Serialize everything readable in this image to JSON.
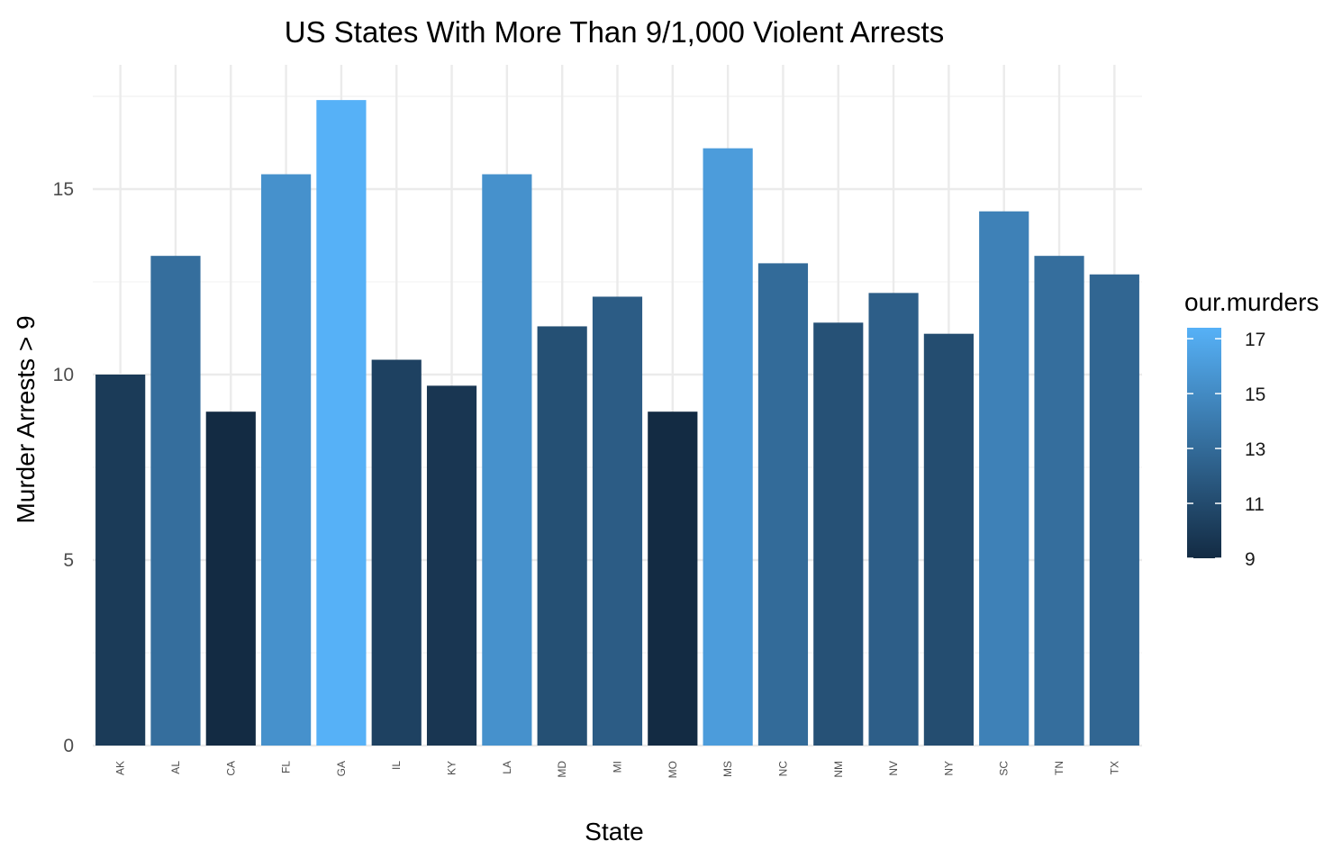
{
  "chart_data": {
    "type": "bar",
    "title": "US States With More Than 9/1,000 Violent Arrests",
    "xlabel": "State",
    "ylabel": "Murder Arrests > 9",
    "categories": [
      "AK",
      "AL",
      "CA",
      "FL",
      "GA",
      "IL",
      "KY",
      "LA",
      "MD",
      "MI",
      "MO",
      "MS",
      "NC",
      "NM",
      "NV",
      "NY",
      "SC",
      "TN",
      "TX"
    ],
    "values": [
      10.0,
      13.2,
      9.0,
      15.4,
      17.4,
      10.4,
      9.7,
      15.4,
      11.3,
      12.1,
      9.0,
      16.1,
      13.0,
      11.4,
      12.2,
      11.1,
      14.4,
      13.2,
      12.7
    ],
    "ylim": [
      0,
      17.4
    ],
    "yticks": [
      0,
      5,
      10,
      15
    ],
    "grid": true,
    "legend": {
      "title": "our.murders",
      "position": "right",
      "type": "colorbar",
      "ticks": [
        9,
        11,
        13,
        15,
        17
      ],
      "range": [
        9,
        17.4
      ],
      "color_low": "#132B43",
      "color_high": "#56B1F7"
    }
  }
}
